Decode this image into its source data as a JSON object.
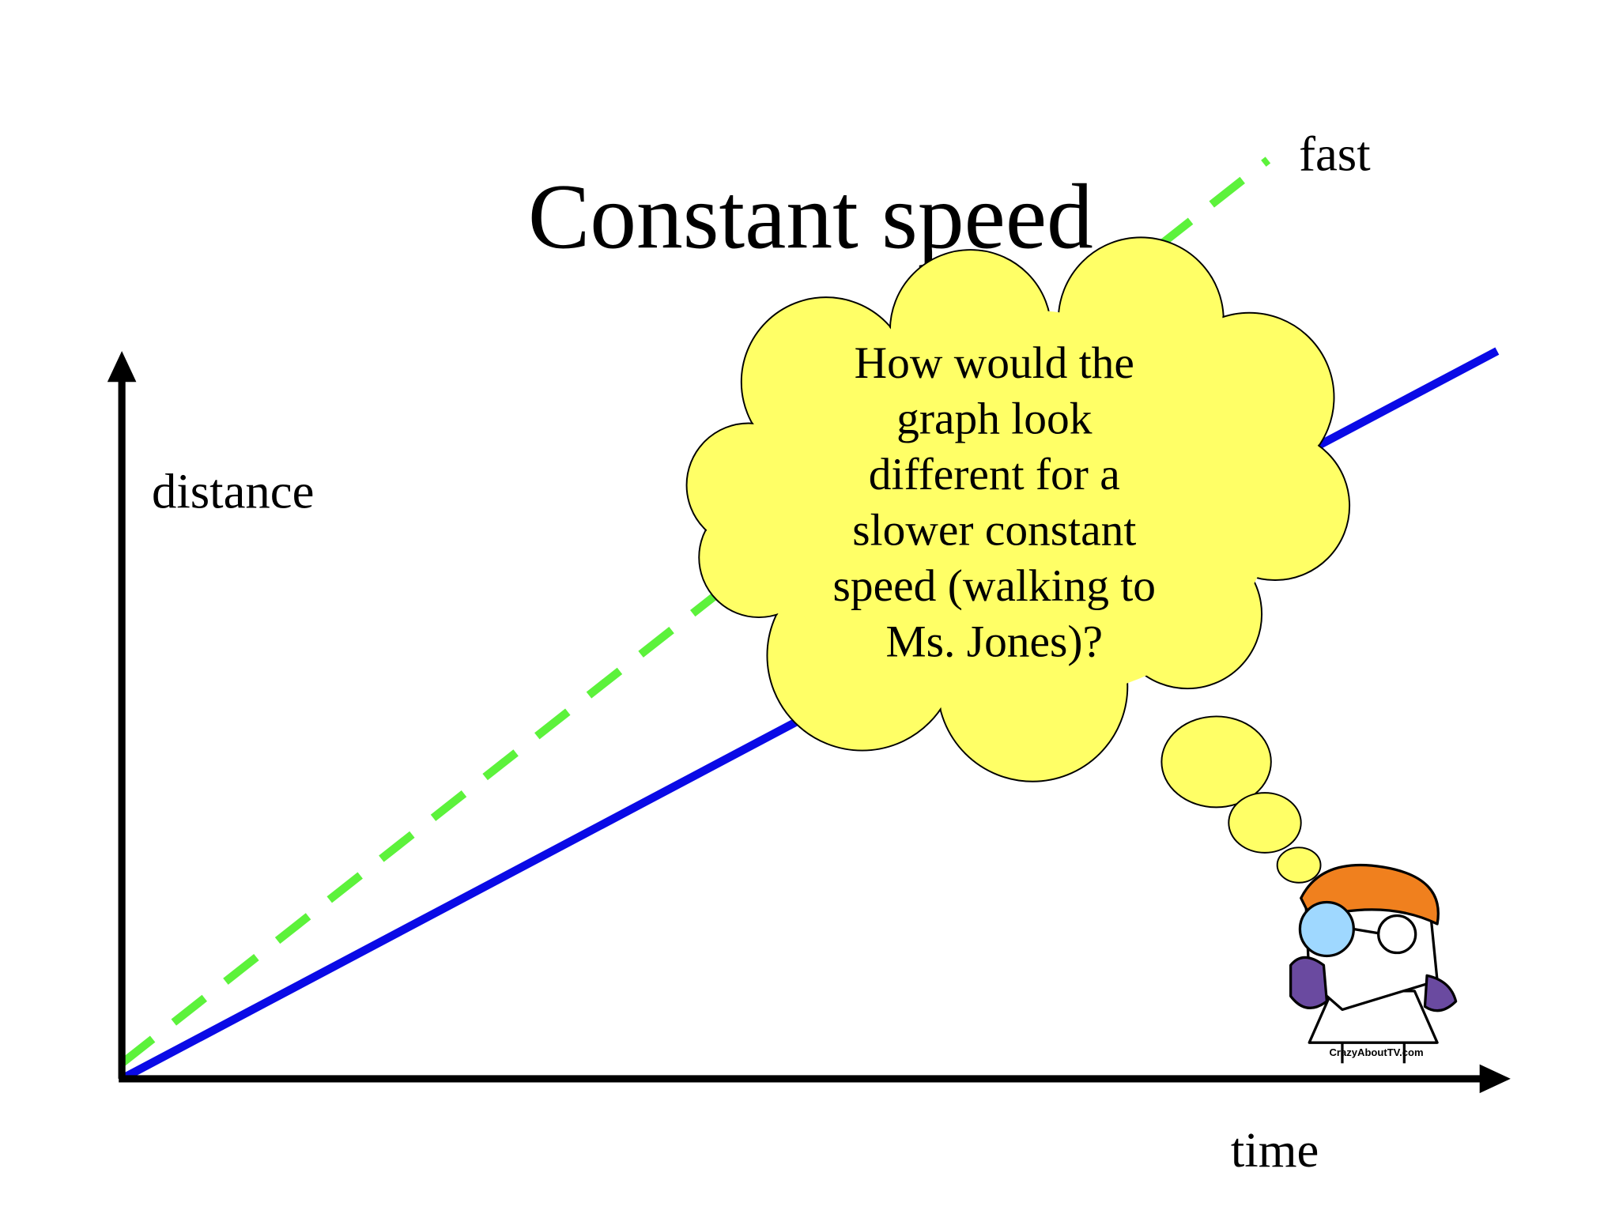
{
  "title": "Constant speed",
  "axes": {
    "y_label": "distance",
    "x_label": "time"
  },
  "line_label": "fast",
  "thought_bubble": {
    "lines": [
      "How would the",
      "graph look",
      "different for a",
      "slower constant",
      "speed (walking to",
      "Ms. Jones)?"
    ]
  },
  "watermark": "CrazyAboutTV.com"
}
